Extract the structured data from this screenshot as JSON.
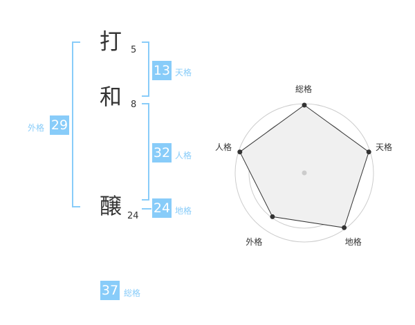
{
  "name": {
    "chars": [
      {
        "char": "打",
        "strokes": "5"
      },
      {
        "char": "和",
        "strokes": "8"
      },
      {
        "char": "醸",
        "strokes": "24"
      }
    ]
  },
  "scores": {
    "tenkaku": {
      "label": "天格",
      "value": "13"
    },
    "jinkaku": {
      "label": "人格",
      "value": "32"
    },
    "chikaku": {
      "label": "地格",
      "value": "24"
    },
    "gaikaku": {
      "label": "外格",
      "value": "29"
    },
    "soukaku": {
      "label": "総格",
      "value": "37"
    }
  },
  "colors": {
    "accent": "#88ccf9",
    "radar_fill": "#f0f0f0",
    "radar_line": "#333333"
  },
  "chart_data": {
    "type": "radar",
    "axes": [
      "総格",
      "天格",
      "地格",
      "外格",
      "人格"
    ],
    "values": [
      5,
      5,
      5,
      4,
      5
    ],
    "range": [
      0,
      5
    ],
    "rings": 5
  }
}
